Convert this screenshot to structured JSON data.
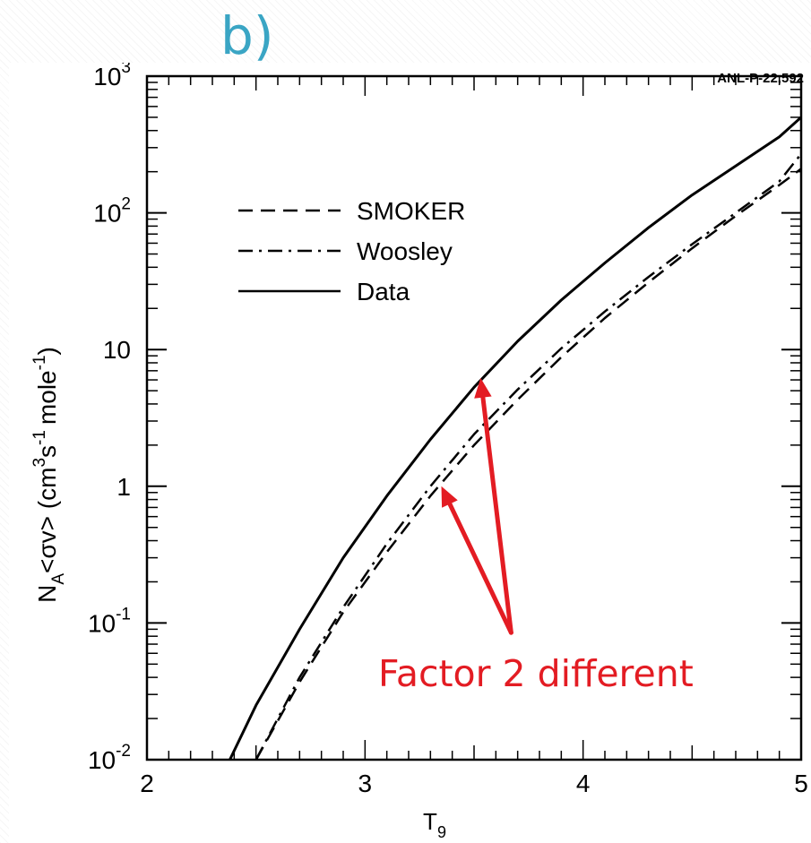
{
  "panel_label": "b)",
  "chart_data": {
    "type": "line",
    "title": "",
    "corner_label": "ANL-P-22,592",
    "xlabel": "T",
    "xlabel_sub": "9",
    "ylabel_parts": [
      "N",
      "A",
      "<σv>  (cm",
      "3",
      "s",
      "-1",
      "mole",
      "-1",
      ")"
    ],
    "xlim": [
      2,
      5
    ],
    "ylim": [
      0.01,
      1000
    ],
    "yscale": "log",
    "grid": false,
    "legend_position": "upper-left",
    "x_ticks": [
      {
        "value": 2,
        "label": "2"
      },
      {
        "value": 3,
        "label": "3"
      },
      {
        "value": 4,
        "label": "4"
      },
      {
        "value": 5,
        "label": "5"
      }
    ],
    "y_ticks": [
      {
        "value": 0.01,
        "base": "10",
        "exp": "-2"
      },
      {
        "value": 0.1,
        "base": "10",
        "exp": "-1"
      },
      {
        "value": 1,
        "base": "1",
        "exp": ""
      },
      {
        "value": 10,
        "base": "10",
        "exp": ""
      },
      {
        "value": 100,
        "base": "10",
        "exp": "2"
      },
      {
        "value": 1000,
        "base": "10",
        "exp": "3"
      }
    ],
    "series": [
      {
        "name": "SMOKER",
        "style": "dashed",
        "x": [
          2.5,
          2.7,
          2.9,
          3.1,
          3.3,
          3.5,
          3.7,
          3.9,
          4.1,
          4.3,
          4.5,
          4.7,
          4.9,
          5.0
        ],
        "y": [
          0.0098,
          0.037,
          0.12,
          0.33,
          0.85,
          2.0,
          4.3,
          8.8,
          17,
          31,
          55,
          95,
          160,
          210
        ]
      },
      {
        "name": "Woosley",
        "style": "dashdot",
        "x": [
          2.5,
          2.7,
          2.9,
          3.1,
          3.3,
          3.5,
          3.7,
          3.9,
          4.1,
          4.3,
          4.5,
          4.7,
          4.9,
          5.0
        ],
        "y": [
          0.0098,
          0.04,
          0.13,
          0.38,
          1.0,
          2.4,
          5.1,
          10.2,
          19,
          34,
          59,
          100,
          170,
          270
        ]
      },
      {
        "name": "Data",
        "style": "solid",
        "x": [
          2.38,
          2.5,
          2.7,
          2.9,
          3.1,
          3.3,
          3.5,
          3.7,
          3.9,
          4.1,
          4.3,
          4.5,
          4.7,
          4.9,
          5.0
        ],
        "y": [
          0.01,
          0.025,
          0.09,
          0.3,
          0.85,
          2.2,
          5.3,
          11.5,
          23,
          43,
          78,
          135,
          220,
          360,
          500
        ]
      }
    ],
    "annotation": {
      "text": "Factor 2 different",
      "color": "#e31c23",
      "arrow_tip_points": [
        {
          "x": 3.35,
          "y": 1.0
        },
        {
          "x": 3.53,
          "y": 6.2
        }
      ],
      "arrow_base_point": {
        "x": 3.67,
        "y": 0.085
      }
    }
  }
}
